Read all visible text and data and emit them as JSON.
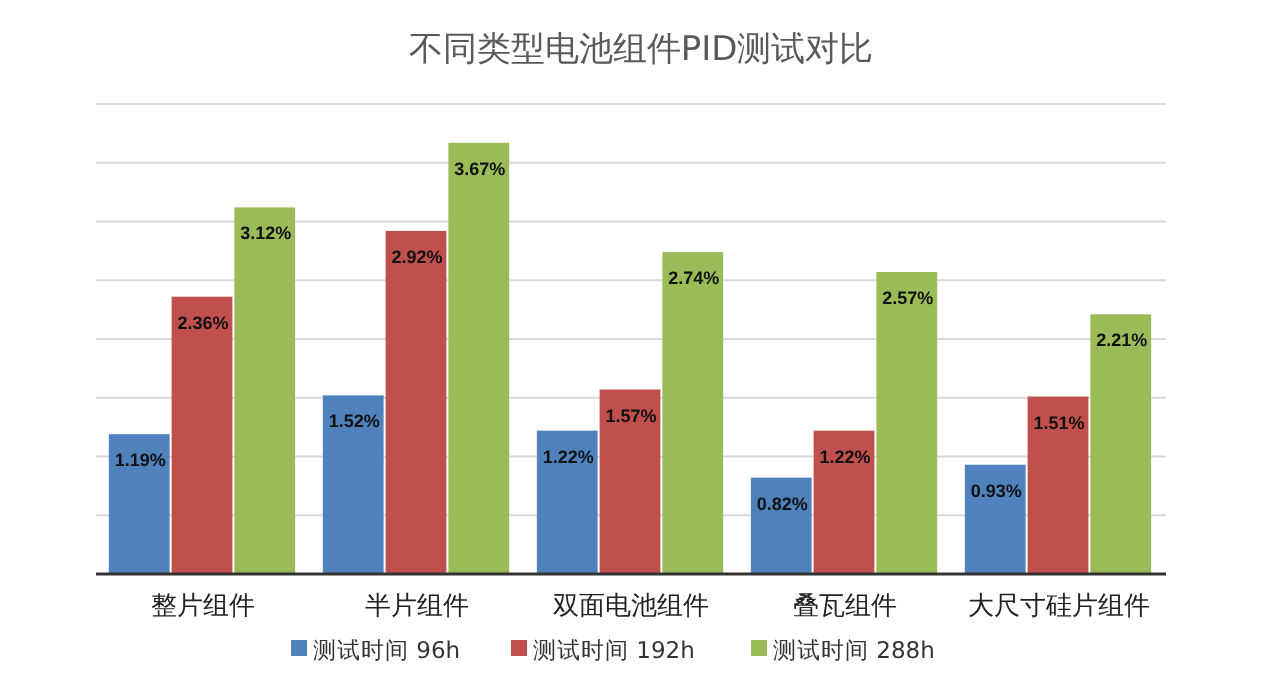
{
  "chart_data": {
    "type": "bar",
    "title": "不同类型电池组件PID测试对比",
    "categories": [
      "整片组件",
      "半片组件",
      "双面电池组件",
      "叠瓦组件",
      "大尺寸硅片组件"
    ],
    "series": [
      {
        "name": "测试时间 96h",
        "color": "#4f81bd",
        "values": [
          1.19,
          1.52,
          1.22,
          0.82,
          0.93
        ],
        "value_labels": [
          "1.19%",
          "1.52%",
          "1.22%",
          "0.82%",
          "0.93%"
        ]
      },
      {
        "name": "测试时间 192h",
        "color": "#c0504d",
        "values": [
          2.36,
          2.92,
          1.57,
          1.22,
          1.51
        ],
        "value_labels": [
          "2.36%",
          "2.92%",
          "1.57%",
          "1.22%",
          "1.51%"
        ]
      },
      {
        "name": "测试时间 288h",
        "color": "#9bbb59",
        "values": [
          3.12,
          3.67,
          2.74,
          2.57,
          2.21
        ],
        "value_labels": [
          "3.12%",
          "3.67%",
          "2.74%",
          "2.57%",
          "2.21%"
        ]
      }
    ],
    "ylim": [
      0,
      4
    ],
    "yticks": [
      {
        "value": 0,
        "label": null
      },
      {
        "value": 0.5,
        "label": null
      },
      {
        "value": 1,
        "label": null
      },
      {
        "value": 1.5,
        "label": null
      },
      {
        "value": 2,
        "label": null
      },
      {
        "value": 2.5,
        "label": null
      },
      {
        "value": 3,
        "label": null
      },
      {
        "value": 3.5,
        "label": null
      },
      {
        "value": 4,
        "label": null
      }
    ],
    "tick_labels": "x",
    "grid": "y",
    "legend": "bottom"
  }
}
